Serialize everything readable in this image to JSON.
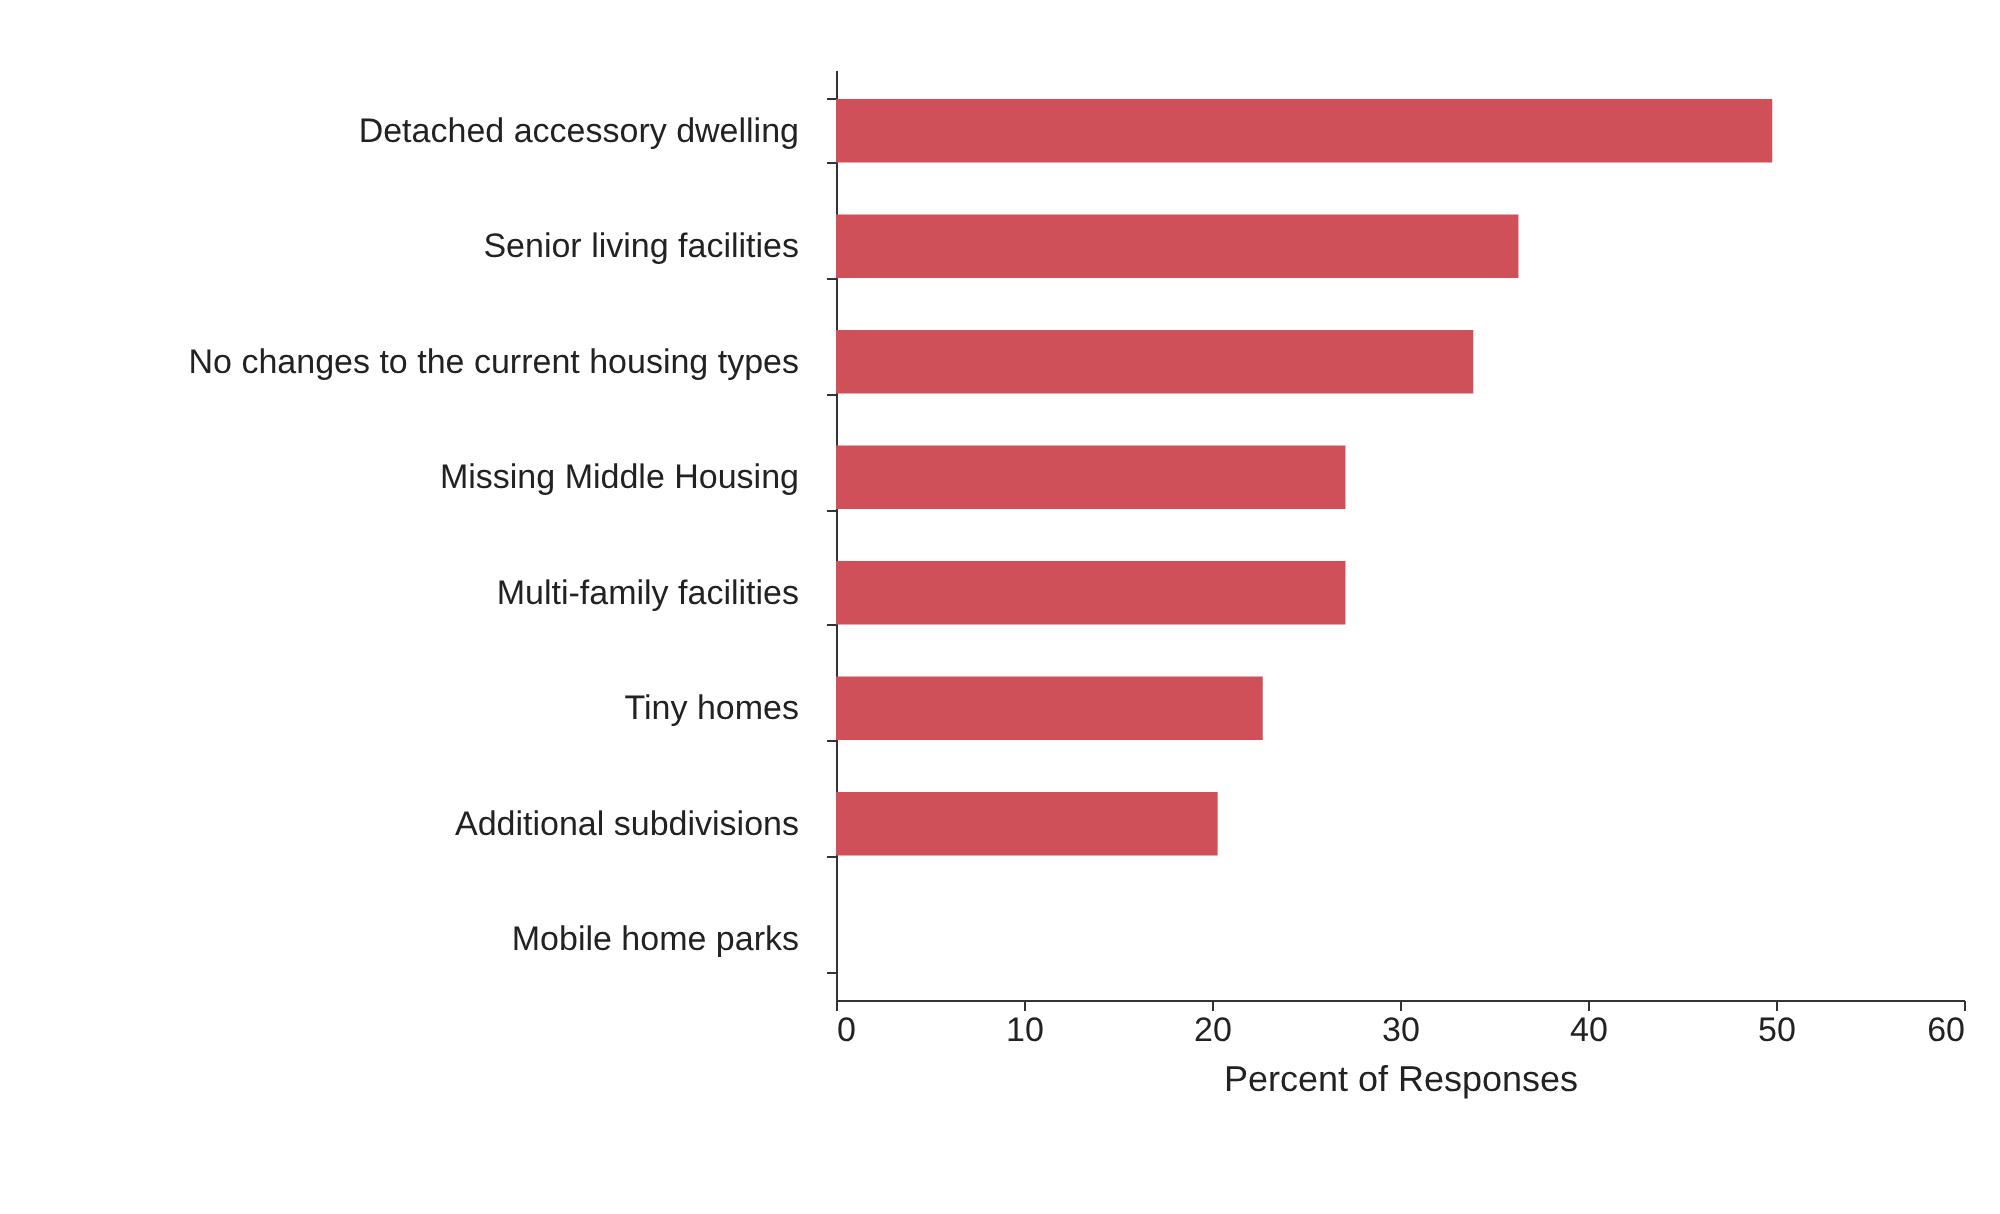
{
  "chart_data": {
    "type": "bar",
    "orientation": "horizontal",
    "xlabel": "Percent of Responses",
    "categories": [
      "Detached accessory dwelling",
      "Senior living facilities",
      "No changes to the current housing types",
      "Missing Middle Housing",
      "Multi-family facilities",
      "Tiny homes",
      "Additional subdivisions",
      "Mobile home parks"
    ],
    "values": [
      49.8,
      36.3,
      33.9,
      27.1,
      27.1,
      22.7,
      20.3,
      0
    ],
    "color": "#d0505a",
    "xlim": [
      0,
      60
    ],
    "xticks": [
      0,
      10,
      20,
      30,
      40,
      50,
      60
    ],
    "grid": false
  }
}
